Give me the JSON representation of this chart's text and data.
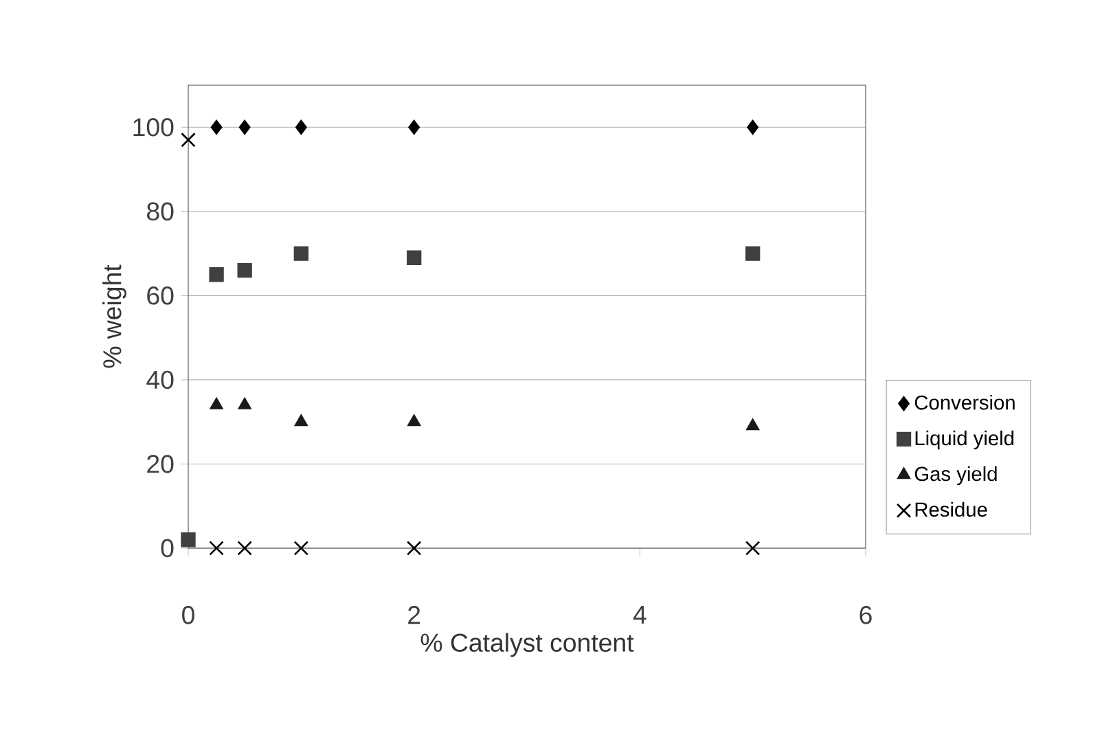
{
  "chart_data": {
    "type": "scatter",
    "xlabel": "% Catalyst content",
    "ylabel": "% weight",
    "x": [
      0,
      0.25,
      0.5,
      1,
      2,
      5
    ],
    "series": [
      {
        "name": "Conversion",
        "color": "#000000",
        "marker": "diamond",
        "values": [
          null,
          100,
          100,
          100,
          100,
          100
        ]
      },
      {
        "name": "Liquid yield",
        "color": "#404040",
        "marker": "square",
        "values": [
          2,
          65,
          66,
          70,
          69,
          70
        ]
      },
      {
        "name": "Gas yield",
        "color": "#1a1a1a",
        "marker": "triangle",
        "values": [
          null,
          34,
          34,
          30,
          30,
          29
        ]
      },
      {
        "name": "Residue",
        "color": "#000000",
        "marker": "cross",
        "values": [
          97,
          0,
          0,
          0,
          0,
          0
        ]
      }
    ],
    "xlim": [
      0,
      6
    ],
    "ylim": [
      0,
      110
    ],
    "xticks": [
      0,
      2,
      4,
      6
    ],
    "yticks": [
      0,
      20,
      40,
      60,
      80,
      100
    ],
    "grid": "y",
    "legend": "right"
  }
}
